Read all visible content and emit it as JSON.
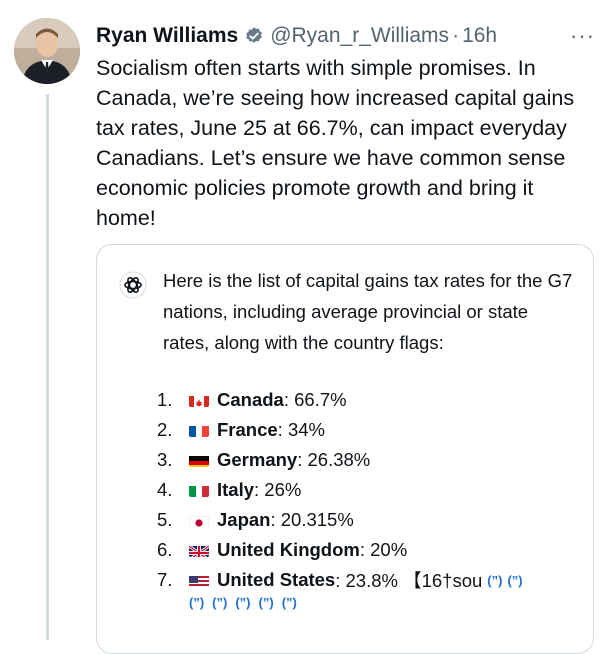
{
  "author": {
    "display_name": "Ryan Williams",
    "handle": "@Ryan_r_Williams",
    "separator": "·",
    "time": "16h",
    "more_label": "···"
  },
  "tweet": {
    "text": "Socialism often starts with simple promises. In Canada, we’re seeing how increased capital gains tax rates, June 25 at 66.7%, can impact everyday Canadians. Let’s ensure we have common sense economic policies promote growth and bring it home!"
  },
  "card": {
    "intro": "Here is the list of capital gains tax rates for the G7 nations, including average provincial or state rates, along with the country flags:",
    "items": [
      {
        "num": "1.",
        "country": "Canada",
        "value": ": 66.7%",
        "flag": "flag-canada"
      },
      {
        "num": "2.",
        "country": "France",
        "value": ": 34%",
        "flag": "flag-france"
      },
      {
        "num": "3.",
        "country": "Germany",
        "value": ": 26.38%",
        "flag": "flag-germany"
      },
      {
        "num": "4.",
        "country": "Italy",
        "value": ": 26%",
        "flag": "flag-italy"
      },
      {
        "num": "5.",
        "country": "Japan",
        "value": ": 20.315%",
        "flag": "flag-japan"
      },
      {
        "num": "6.",
        "country": "United Kingdom",
        "value": ": 20%",
        "flag": "flag-uk"
      },
      {
        "num": "7.",
        "country": "United States",
        "value": ": 23.8% 【16†sou",
        "flag": "flag-usa"
      }
    ],
    "cite_label": "(”)"
  },
  "colors": {
    "text": "#0f1419",
    "muted": "#536471",
    "verified_blue": "#6b7a8a",
    "cite_blue": "#1d6fd6",
    "border": "#cfd9de"
  }
}
